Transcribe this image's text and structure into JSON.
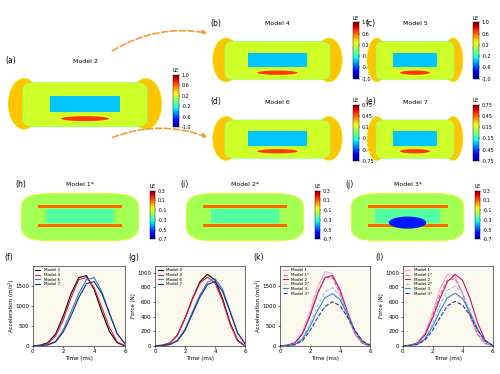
{
  "renders": [
    {
      "label": "(a)",
      "title": "Model 2",
      "colorbar": {
        "title": "LE",
        "range": [
          -1.0,
          1.0
        ],
        "ticks": [
          1.0,
          0.6,
          0.2,
          -0.2,
          -0.6,
          -1.0
        ]
      }
    },
    {
      "label": "(b)",
      "title": "Model 4",
      "colorbar": {
        "title": "LE",
        "range": [
          -1.0,
          1.0
        ],
        "ticks": [
          1.0,
          0.6,
          0.2,
          -0.2,
          -0.6,
          -1.0
        ]
      }
    },
    {
      "label": "(c)",
      "title": "Model 5",
      "colorbar": {
        "title": "LE",
        "range": [
          -1.0,
          1.0
        ],
        "ticks": [
          1.0,
          0.6,
          0.2,
          -0.2,
          -0.6,
          -1.0
        ]
      }
    },
    {
      "label": "(d)",
      "title": "Model 6",
      "colorbar": {
        "title": "LE",
        "range": [
          -0.75,
          0.75
        ],
        "ticks": [
          0.75,
          0.45,
          0.15,
          -0.15,
          -0.45,
          -0.75
        ]
      }
    },
    {
      "label": "(e)",
      "title": "Model 7",
      "colorbar": {
        "title": "LE",
        "range": [
          -0.75,
          0.75
        ],
        "ticks": [
          0.75,
          0.45,
          0.15,
          -0.15,
          -0.45,
          -0.75
        ]
      }
    },
    {
      "label": "(h)",
      "title": "Model 1*",
      "colorbar": {
        "title": "LE",
        "range": [
          -0.7,
          0.3
        ],
        "ticks": [
          0.3,
          0.1,
          -0.1,
          -0.3,
          -0.5,
          -0.7
        ]
      }
    },
    {
      "label": "(i)",
      "title": "Model 2*",
      "colorbar": {
        "title": "LE",
        "range": [
          -0.7,
          0.3
        ],
        "ticks": [
          0.3,
          0.1,
          -0.1,
          -0.3,
          -0.5,
          -0.7
        ]
      }
    },
    {
      "label": "(j)",
      "title": "Model 3*",
      "colorbar": {
        "title": "LE",
        "range": [
          -0.7,
          0.3
        ],
        "ticks": [
          0.3,
          0.1,
          -0.1,
          -0.3,
          -0.5,
          -0.7
        ]
      }
    }
  ],
  "chart_data": [
    {
      "label": "(f)",
      "type": "line",
      "x_label": "Time (ms)",
      "y_label": "Acceleration (m/s²)",
      "x": [
        0,
        0.5,
        1,
        1.5,
        2,
        2.5,
        3,
        3.5,
        4,
        4.5,
        5,
        5.5,
        6
      ],
      "xlim": [
        0,
        6
      ],
      "xticks": [
        0,
        2,
        4,
        6
      ],
      "ylim": [
        0,
        2000
      ],
      "yticks": [
        0,
        500,
        1000,
        1500
      ],
      "legend": "upper left",
      "series": [
        {
          "name": "Model 2",
          "color": "#000000",
          "line_style": "solid",
          "values": [
            0,
            20,
            80,
            300,
            750,
            1300,
            1700,
            1750,
            1400,
            850,
            350,
            80,
            0
          ]
        },
        {
          "name": "Model 4",
          "color": "#e8194c",
          "line_style": "solid",
          "values": [
            0,
            10,
            60,
            250,
            650,
            1200,
            1650,
            1700,
            1450,
            950,
            450,
            100,
            10
          ]
        },
        {
          "name": "Model 6",
          "color": "#3a7bd5",
          "line_style": "solid",
          "values": [
            0,
            5,
            30,
            120,
            400,
            850,
            1300,
            1650,
            1700,
            1350,
            800,
            300,
            50
          ]
        },
        {
          "name": "Model 7",
          "color": "#1f2f7a",
          "line_style": "solid",
          "values": [
            0,
            5,
            25,
            100,
            350,
            750,
            1200,
            1550,
            1600,
            1300,
            800,
            300,
            60
          ]
        }
      ]
    },
    {
      "label": "(g)",
      "type": "line",
      "x_label": "Time (ms)",
      "y_label": "Force (N)",
      "x": [
        0,
        0.5,
        1,
        1.5,
        2,
        2.5,
        3,
        3.5,
        4,
        4.5,
        5,
        5.5,
        6
      ],
      "xlim": [
        0,
        6
      ],
      "xticks": [
        0,
        2,
        4,
        6
      ],
      "ylim": [
        0,
        1100
      ],
      "yticks": [
        0,
        200,
        400,
        600,
        800,
        1000
      ],
      "legend": "upper left",
      "series": [
        {
          "name": "Model 2",
          "color": "#000000",
          "line_style": "solid",
          "values": [
            0,
            10,
            40,
            150,
            380,
            650,
            880,
            980,
            900,
            650,
            320,
            80,
            0
          ]
        },
        {
          "name": "Model 4",
          "color": "#e8194c",
          "line_style": "solid",
          "values": [
            0,
            10,
            40,
            150,
            370,
            640,
            860,
            940,
            860,
            620,
            300,
            70,
            0
          ]
        },
        {
          "name": "Model 6",
          "color": "#3a7bd5",
          "line_style": "solid",
          "values": [
            0,
            5,
            20,
            80,
            230,
            470,
            700,
            870,
            920,
            780,
            480,
            180,
            30
          ]
        },
        {
          "name": "Model 7",
          "color": "#1f2f7a",
          "line_style": "solid",
          "values": [
            0,
            5,
            20,
            70,
            210,
            440,
            670,
            840,
            880,
            750,
            470,
            180,
            30
          ]
        }
      ]
    },
    {
      "label": "(k)",
      "type": "line",
      "x_label": "Time (ms)",
      "y_label": "Acceleration (m/s²)",
      "x": [
        0,
        0.5,
        1,
        1.5,
        2,
        2.5,
        3,
        3.5,
        4,
        4.5,
        5,
        5.5,
        6
      ],
      "xlim": [
        0,
        6
      ],
      "xticks": [
        0,
        2,
        4,
        6
      ],
      "ylim": [
        0,
        2000
      ],
      "yticks": [
        0,
        500,
        1000,
        1500
      ],
      "legend": "upper left",
      "series": [
        {
          "name": "Model 1",
          "color": "#f4a6c8",
          "line_style": "solid",
          "values": [
            0,
            20,
            90,
            350,
            850,
            1450,
            1850,
            1800,
            1350,
            750,
            280,
            60,
            0
          ]
        },
        {
          "name": "Model 1*",
          "color": "#e060a0",
          "line_style": "dashed",
          "values": [
            0,
            15,
            70,
            300,
            750,
            1300,
            1700,
            1700,
            1300,
            750,
            300,
            70,
            5
          ]
        },
        {
          "name": "Model 2",
          "color": "#c0186c",
          "line_style": "solid",
          "values": [
            0,
            20,
            80,
            300,
            750,
            1300,
            1700,
            1750,
            1400,
            850,
            350,
            80,
            0
          ]
        },
        {
          "name": "Model 2*",
          "color": "#8fc7ef",
          "line_style": "dashed",
          "values": [
            0,
            10,
            50,
            200,
            550,
            1000,
            1350,
            1450,
            1250,
            800,
            350,
            90,
            10
          ]
        },
        {
          "name": "Model 3",
          "color": "#3a86d6",
          "line_style": "solid",
          "values": [
            0,
            10,
            40,
            170,
            480,
            880,
            1200,
            1300,
            1150,
            780,
            380,
            110,
            15
          ]
        },
        {
          "name": "Model 3*",
          "color": "#1f3f8f",
          "line_style": "dashed",
          "values": [
            0,
            5,
            30,
            130,
            380,
            700,
            980,
            1100,
            1000,
            720,
            380,
            120,
            20
          ]
        }
      ]
    },
    {
      "label": "(l)",
      "type": "line",
      "x_label": "Time (ms)",
      "y_label": "Force (N)",
      "x": [
        0,
        0.5,
        1,
        1.5,
        2,
        2.5,
        3,
        3.5,
        4,
        4.5,
        5,
        5.5,
        6
      ],
      "xlim": [
        0,
        6
      ],
      "xticks": [
        0,
        2,
        4,
        6
      ],
      "ylim": [
        0,
        1100
      ],
      "yticks": [
        0,
        200,
        400,
        600,
        800,
        1000
      ],
      "legend": "upper left",
      "series": [
        {
          "name": "Model 1",
          "color": "#f4a6c8",
          "line_style": "solid",
          "values": [
            0,
            10,
            45,
            180,
            450,
            780,
            980,
            960,
            720,
            400,
            150,
            30,
            0
          ]
        },
        {
          "name": "Model 1*",
          "color": "#e060a0",
          "line_style": "dashed",
          "values": [
            0,
            10,
            40,
            160,
            400,
            700,
            900,
            920,
            720,
            420,
            170,
            40,
            0
          ]
        },
        {
          "name": "Model 2",
          "color": "#c0186c",
          "line_style": "solid",
          "values": [
            0,
            10,
            40,
            150,
            380,
            650,
            880,
            980,
            900,
            650,
            320,
            80,
            0
          ]
        },
        {
          "name": "Model 2*",
          "color": "#8fc7ef",
          "line_style": "dashed",
          "values": [
            0,
            5,
            30,
            110,
            300,
            560,
            760,
            820,
            720,
            480,
            220,
            60,
            5
          ]
        },
        {
          "name": "Model 3",
          "color": "#3a86d6",
          "line_style": "solid",
          "values": [
            0,
            5,
            25,
            95,
            260,
            480,
            660,
            720,
            650,
            460,
            230,
            70,
            10
          ]
        },
        {
          "name": "Model 3*",
          "color": "#1f3f8f",
          "line_style": "dashed",
          "values": [
            0,
            5,
            20,
            80,
            210,
            390,
            550,
            610,
            560,
            420,
            220,
            70,
            10
          ]
        }
      ]
    }
  ]
}
